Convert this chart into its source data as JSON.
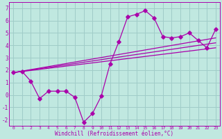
{
  "background_color": "#c0e8e0",
  "grid_color": "#a0ccc8",
  "line_color": "#aa00aa",
  "marker_color": "#aa00aa",
  "xlabel": "Windchill (Refroidissement éolien,°C)",
  "ylim": [
    -2.5,
    7.5
  ],
  "xlim": [
    -0.5,
    23.5
  ],
  "xticks": [
    0,
    1,
    2,
    3,
    4,
    5,
    6,
    7,
    8,
    9,
    10,
    11,
    12,
    13,
    14,
    15,
    16,
    17,
    18,
    19,
    20,
    21,
    22,
    23
  ],
  "yticks": [
    -2,
    -1,
    0,
    1,
    2,
    3,
    4,
    5,
    6,
    7
  ],
  "series1_x": [
    0,
    1,
    2,
    3,
    4,
    5,
    6,
    7,
    8,
    9,
    10,
    11,
    12,
    13,
    14,
    15,
    16,
    17,
    18,
    19,
    20,
    21,
    22,
    23
  ],
  "series1_y": [
    1.8,
    1.9,
    1.1,
    -0.3,
    0.3,
    0.3,
    0.3,
    -0.2,
    -2.2,
    -1.5,
    -0.1,
    2.5,
    4.3,
    6.3,
    6.5,
    6.8,
    6.2,
    4.7,
    4.6,
    4.7,
    5.0,
    4.4,
    3.8,
    5.3
  ],
  "trend1_x": [
    0,
    23
  ],
  "trend1_y": [
    1.8,
    4.6
  ],
  "trend2_x": [
    0,
    23
  ],
  "trend2_y": [
    1.8,
    4.2
  ],
  "trend3_x": [
    0,
    23
  ],
  "trend3_y": [
    1.8,
    3.8
  ]
}
